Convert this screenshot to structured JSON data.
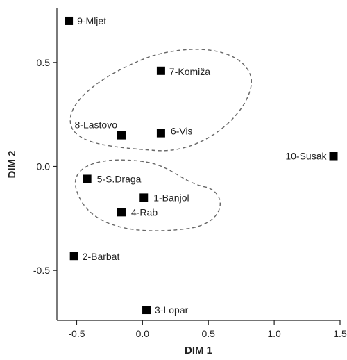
{
  "chart_data": {
    "type": "scatter",
    "title": "",
    "xlabel": "DIM 1",
    "ylabel": "DIM 2",
    "xlim": [
      -0.65,
      1.5
    ],
    "ylim": [
      -0.74,
      0.76
    ],
    "xticks": [
      -0.5,
      0.0,
      0.5,
      1.0,
      1.5
    ],
    "xtick_labels": [
      "-0.5",
      "0.0",
      "0.5",
      "1.0",
      "1.5"
    ],
    "yticks": [
      -0.5,
      0.0,
      0.5
    ],
    "ytick_labels": [
      "-0.5",
      "0.0",
      "0.5"
    ],
    "grid": false,
    "legend": "none",
    "marker": "square",
    "marker_color": "#000000",
    "points": [
      {
        "label": "9-Mljet",
        "x": -0.56,
        "y": 0.7
      },
      {
        "label": "7-Komiža",
        "x": 0.14,
        "y": 0.46
      },
      {
        "label": "8-Lastovo",
        "x": -0.16,
        "y": 0.15
      },
      {
        "label": "6-Vis",
        "x": 0.14,
        "y": 0.16
      },
      {
        "label": "10-Susak",
        "x": 1.45,
        "y": 0.05
      },
      {
        "label": "5-S.Draga",
        "x": -0.42,
        "y": -0.06
      },
      {
        "label": "1-Banjol",
        "x": 0.01,
        "y": -0.15
      },
      {
        "label": "4-Rab",
        "x": -0.16,
        "y": -0.22
      },
      {
        "label": "2-Barbat",
        "x": -0.52,
        "y": -0.43
      },
      {
        "label": "3-Lopar",
        "x": 0.03,
        "y": -0.69
      }
    ],
    "clusters": [
      {
        "members": [
          "7-Komiža",
          "8-Lastovo",
          "6-Vis"
        ],
        "style": "dashed"
      },
      {
        "members": [
          "5-S.Draga",
          "1-Banjol",
          "4-Rab"
        ],
        "style": "dashed"
      }
    ]
  }
}
